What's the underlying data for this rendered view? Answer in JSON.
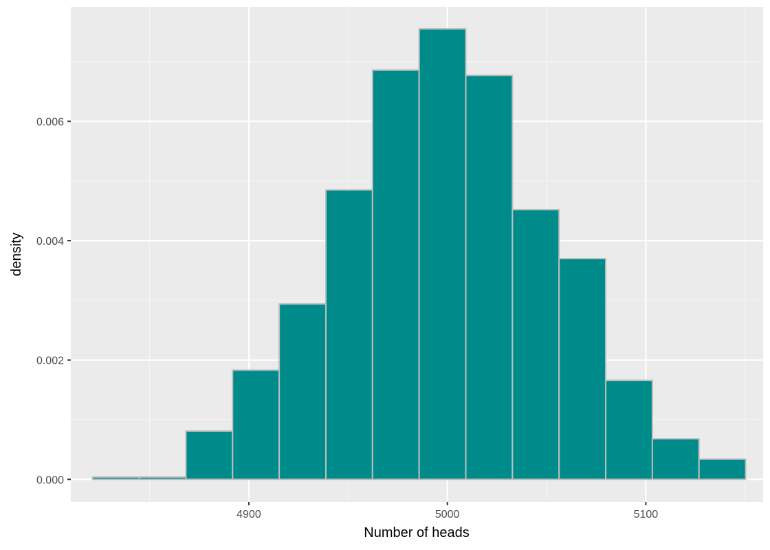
{
  "chart_data": {
    "type": "histogram",
    "title": "",
    "xlabel": "Number of heads",
    "ylabel": "density",
    "xlim": [
      4810.3,
      5159.1
    ],
    "ylim": [
      -0.000377,
      0.007918
    ],
    "x_ticks": [
      4900,
      5000,
      5100
    ],
    "x_tick_labels": [
      "4900",
      "5000",
      "5100"
    ],
    "y_ticks": [
      0,
      0.002,
      0.004,
      0.006
    ],
    "y_tick_labels": [
      "0.000",
      "0.002",
      "0.004",
      "0.006"
    ],
    "bin_edges": [
      4821.3,
      4844.8,
      4868.3,
      4891.8,
      4915.3,
      4938.8,
      4962.3,
      4985.8,
      5009.3,
      5032.8,
      5056.3,
      5079.8,
      5103.3,
      5126.8,
      5150.3
    ],
    "values": [
      4e-05,
      4e-05,
      0.00081,
      0.00183,
      0.00294,
      0.00485,
      0.00686,
      0.00755,
      0.00677,
      0.00452,
      0.0037,
      0.00166,
      0.00068,
      0.00034
    ],
    "grid": true,
    "legend": "none",
    "colors": {
      "bar_fill": "#008b8b",
      "bar_outline": "#bebebe",
      "panel_background": "#ebebeb",
      "grid_major": "#ffffff",
      "grid_minor": "#f5f5f5",
      "tick_label": "#4d4d4d",
      "axis_title": "#000000"
    }
  }
}
